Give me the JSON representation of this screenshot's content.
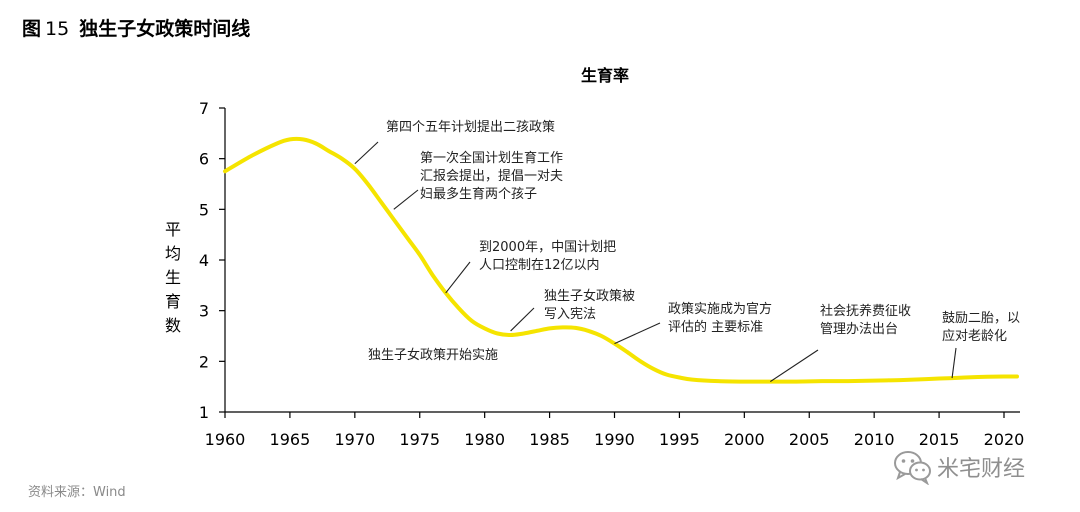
{
  "figure": {
    "label": "图",
    "number": "15",
    "title": "独生子女政策时间线"
  },
  "source": "资料来源：Wind",
  "watermark": {
    "text": "米宅财经",
    "icon": "wechat-icon"
  },
  "colors": {
    "line": "#f5e400",
    "axis": "#000000"
  },
  "chart_data": {
    "type": "line",
    "title": "生育率",
    "ylabel": "平均生育数",
    "xlim": [
      1960,
      2021
    ],
    "ylim": [
      1,
      7
    ],
    "xticks": [
      1960,
      1965,
      1970,
      1975,
      1980,
      1985,
      1990,
      1995,
      2000,
      2005,
      2010,
      2015,
      2020
    ],
    "yticks": [
      1,
      2,
      3,
      4,
      5,
      6,
      7
    ],
    "grid": false,
    "series": [
      {
        "x": [
          1960,
          1962,
          1964,
          1965,
          1966,
          1967,
          1968,
          1969,
          1970,
          1971,
          1972,
          1973,
          1974,
          1975,
          1976,
          1977,
          1978,
          1979,
          1980,
          1981,
          1982,
          1983,
          1984,
          1985,
          1986,
          1987,
          1988,
          1989,
          1990,
          1991,
          1992,
          1993,
          1994,
          1995,
          1996,
          1998,
          2000,
          2002,
          2004,
          2006,
          2008,
          2010,
          2012,
          2014,
          2016,
          2018,
          2020,
          2021
        ],
        "y": [
          5.75,
          6.05,
          6.3,
          6.38,
          6.38,
          6.3,
          6.15,
          6.0,
          5.8,
          5.5,
          5.15,
          4.8,
          4.45,
          4.1,
          3.7,
          3.35,
          3.05,
          2.8,
          2.65,
          2.55,
          2.52,
          2.55,
          2.6,
          2.65,
          2.67,
          2.66,
          2.6,
          2.5,
          2.35,
          2.18,
          2.0,
          1.85,
          1.74,
          1.68,
          1.64,
          1.61,
          1.6,
          1.6,
          1.6,
          1.61,
          1.61,
          1.62,
          1.63,
          1.65,
          1.67,
          1.69,
          1.7,
          1.7
        ]
      }
    ],
    "annotations": [
      {
        "lines": [
          "第四个五年计划提出二孩政策"
        ],
        "x": 1970,
        "y": 5.9
      },
      {
        "lines": [
          "第一次全国计划生育工作",
          "汇报会提出，提倡一对夫",
          "妇最多生育两个孩子"
        ],
        "x": 1973,
        "y": 5.0
      },
      {
        "lines": [
          "到2000年，中国计划把",
          "人口控制在12亿以内"
        ],
        "x": 1977,
        "y": 3.35
      },
      {
        "lines": [
          "独生子女政策被",
          "写入宪法"
        ],
        "x": 1982,
        "y": 2.6
      },
      {
        "lines": [
          "独生子女政策开始实施"
        ],
        "x": 1979.5,
        "y": 2.7
      },
      {
        "lines": [
          "政策实施成为官方",
          "评估的 主要标准"
        ],
        "x": 1990,
        "y": 2.35
      },
      {
        "lines": [
          "社会抚养费征收",
          "管理办法出台"
        ],
        "x": 2002,
        "y": 1.6
      },
      {
        "lines": [
          "鼓励二胎，以",
          "应对老龄化"
        ],
        "x": 2016,
        "y": 1.67
      }
    ]
  }
}
